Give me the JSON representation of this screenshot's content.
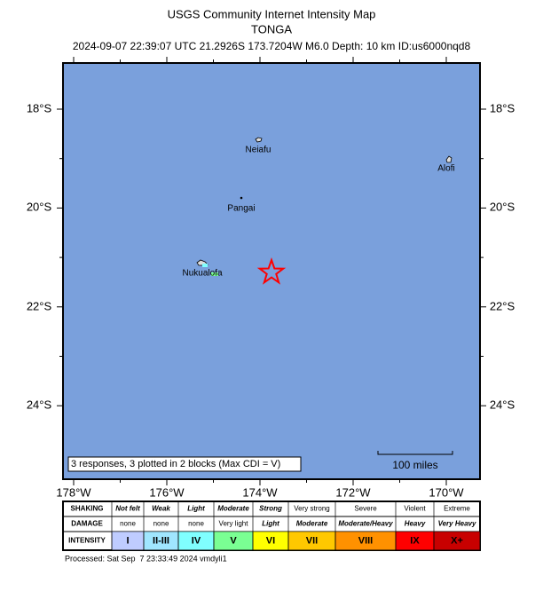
{
  "header": {
    "title": "USGS Community Internet Intensity Map",
    "region": "TONGA",
    "event": "2024-09-07 22:39:07 UTC 21.2926S 173.7204W M6.0 Depth: 10 km ID:us6000nqd8"
  },
  "map": {
    "lat_labels": [
      "18°S",
      "20°S",
      "22°S",
      "24°S"
    ],
    "lon_labels": [
      "178°W",
      "176°W",
      "174°W",
      "172°W",
      "170°W"
    ],
    "places": [
      "Neiafu",
      "Alofi",
      "Pangai",
      "Nukualofa"
    ],
    "response_note": "3 responses, 3 plotted in 2 blocks (Max CDI = V)",
    "scale_label": "100 miles"
  },
  "legend": {
    "row_labels": [
      "SHAKING",
      "DAMAGE",
      "INTENSITY"
    ],
    "shaking": [
      "Not felt",
      "Weak",
      "Light",
      "Moderate",
      "Strong",
      "Very strong",
      "Severe",
      "Violent",
      "Extreme"
    ],
    "damage": [
      "none",
      "none",
      "none",
      "Very light",
      "Light",
      "Moderate",
      "Moderate/Heavy",
      "Heavy",
      "Very Heavy"
    ],
    "intensity": [
      "I",
      "II-III",
      "IV",
      "V",
      "VI",
      "VII",
      "VIII",
      "IX",
      "X+"
    ]
  },
  "footer": "Processed: Sat Sep  7 23:33:49 2024 vmdyli1"
}
